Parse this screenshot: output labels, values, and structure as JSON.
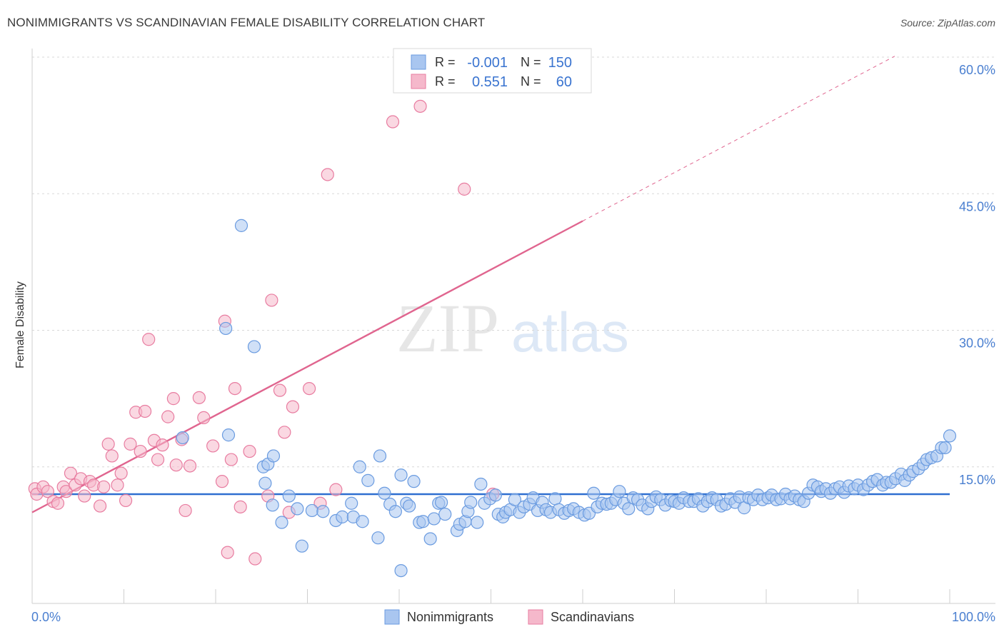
{
  "header": {
    "title": "NONIMMIGRANTS VS SCANDINAVIAN FEMALE DISABILITY CORRELATION CHART",
    "source": "Source: ZipAtlas.com"
  },
  "watermark": {
    "zip": "ZIP",
    "atlas": "atlas"
  },
  "colors": {
    "blue": "#6a9be0",
    "blue_fill": "#a9c6f0",
    "pink": "#e87ca0",
    "pink_fill": "#f5b8cb",
    "blue_line": "#2f6fd0",
    "pink_line": "#e0658f",
    "grid": "#d8d8d8"
  },
  "legend_top": {
    "rows": [
      {
        "r_label": "R =",
        "r_value": "-0.001",
        "n_label": "N =",
        "n_value": "150",
        "series": "blue"
      },
      {
        "r_label": "R =",
        "r_value": "0.551",
        "n_label": "N =",
        "n_value": "60",
        "series": "pink"
      }
    ]
  },
  "legend_bottom": {
    "items": [
      {
        "label": "Nonimmigrants",
        "series": "blue"
      },
      {
        "label": "Scandinavians",
        "series": "pink"
      }
    ]
  },
  "chart_data": {
    "type": "scatter",
    "title": "NONIMMIGRANTS VS SCANDINAVIAN FEMALE DISABILITY CORRELATION CHART",
    "xlabel": "",
    "ylabel": "Female Disability",
    "xlim": [
      0,
      100
    ],
    "ylim": [
      0,
      60
    ],
    "x_tick_labels": [
      "0.0%",
      "100.0%"
    ],
    "y_ticks": [
      15,
      30,
      45,
      60
    ],
    "y_tick_labels": [
      "15.0%",
      "30.0%",
      "45.0%",
      "60.0%"
    ],
    "trendlines": [
      {
        "series": "Nonimmigrants",
        "x": [
          0,
          100
        ],
        "y": [
          12.0,
          12.0
        ],
        "style": "solid"
      },
      {
        "series": "Scandinavians",
        "x": [
          0,
          60
        ],
        "y": [
          10.0,
          42.0
        ],
        "style": "solid"
      },
      {
        "series": "Scandinavians",
        "x": [
          60,
          94
        ],
        "y": [
          42.0,
          60.1
        ],
        "style": "dashed"
      }
    ],
    "series": [
      {
        "name": "Nonimmigrants",
        "points": [
          [
            16.4,
            18.2
          ],
          [
            21.1,
            30.2
          ],
          [
            22.8,
            41.5
          ],
          [
            24.2,
            28.2
          ],
          [
            21.4,
            18.5
          ],
          [
            25.2,
            15.0
          ],
          [
            25.7,
            15.3
          ],
          [
            26.3,
            16.2
          ],
          [
            25.4,
            13.2
          ],
          [
            26.2,
            10.8
          ],
          [
            28.0,
            11.8
          ],
          [
            27.2,
            8.9
          ],
          [
            29.4,
            6.3
          ],
          [
            28.9,
            10.4
          ],
          [
            30.5,
            10.2
          ],
          [
            31.7,
            10.1
          ],
          [
            33.1,
            9.1
          ],
          [
            33.8,
            9.5
          ],
          [
            34.8,
            11.0
          ],
          [
            35.0,
            9.5
          ],
          [
            36.0,
            9.0
          ],
          [
            35.7,
            15.0
          ],
          [
            36.6,
            13.5
          ],
          [
            37.7,
            7.2
          ],
          [
            37.9,
            16.2
          ],
          [
            38.4,
            12.1
          ],
          [
            39.0,
            10.9
          ],
          [
            39.6,
            10.1
          ],
          [
            40.2,
            14.1
          ],
          [
            40.2,
            3.6
          ],
          [
            40.8,
            11.0
          ],
          [
            41.1,
            10.7
          ],
          [
            41.6,
            13.4
          ],
          [
            42.2,
            8.9
          ],
          [
            42.6,
            9.0
          ],
          [
            43.4,
            7.1
          ],
          [
            43.8,
            9.3
          ],
          [
            44.3,
            11.0
          ],
          [
            44.6,
            11.1
          ],
          [
            45.0,
            9.8
          ],
          [
            46.3,
            8.0
          ],
          [
            46.6,
            8.7
          ],
          [
            47.2,
            9.0
          ],
          [
            47.5,
            10.1
          ],
          [
            47.8,
            11.1
          ],
          [
            48.5,
            8.9
          ],
          [
            48.9,
            13.1
          ],
          [
            49.3,
            11.0
          ],
          [
            49.9,
            11.5
          ],
          [
            50.5,
            11.9
          ],
          [
            50.8,
            9.8
          ],
          [
            51.3,
            9.5
          ],
          [
            51.6,
            10.0
          ],
          [
            52.1,
            10.3
          ],
          [
            52.6,
            11.4
          ],
          [
            53.1,
            10.0
          ],
          [
            53.6,
            10.6
          ],
          [
            54.2,
            10.9
          ],
          [
            54.6,
            11.6
          ],
          [
            55.1,
            10.2
          ],
          [
            55.6,
            11.1
          ],
          [
            56.0,
            10.3
          ],
          [
            56.5,
            10.0
          ],
          [
            57.0,
            11.5
          ],
          [
            57.4,
            10.3
          ],
          [
            58.0,
            9.9
          ],
          [
            58.5,
            10.2
          ],
          [
            59.0,
            10.4
          ],
          [
            59.6,
            10.0
          ],
          [
            60.2,
            9.7
          ],
          [
            60.7,
            9.9
          ],
          [
            61.2,
            12.1
          ],
          [
            61.6,
            10.6
          ],
          [
            62.1,
            11.0
          ],
          [
            62.6,
            10.9
          ],
          [
            63.1,
            11.0
          ],
          [
            63.6,
            11.4
          ],
          [
            64.0,
            12.3
          ],
          [
            64.5,
            11.0
          ],
          [
            65.0,
            10.4
          ],
          [
            65.5,
            11.6
          ],
          [
            66.0,
            11.4
          ],
          [
            66.5,
            10.8
          ],
          [
            67.1,
            10.4
          ],
          [
            67.5,
            11.2
          ],
          [
            68.0,
            11.7
          ],
          [
            68.5,
            11.4
          ],
          [
            69.0,
            10.8
          ],
          [
            69.6,
            11.3
          ],
          [
            70.0,
            11.2
          ],
          [
            70.5,
            11.0
          ],
          [
            71.0,
            11.6
          ],
          [
            71.6,
            11.2
          ],
          [
            72.1,
            11.2
          ],
          [
            72.6,
            11.5
          ],
          [
            73.1,
            10.7
          ],
          [
            73.6,
            11.2
          ],
          [
            74.1,
            11.6
          ],
          [
            74.6,
            11.4
          ],
          [
            75.1,
            10.7
          ],
          [
            75.6,
            10.9
          ],
          [
            76.1,
            11.5
          ],
          [
            76.6,
            11.1
          ],
          [
            77.1,
            11.7
          ],
          [
            77.6,
            10.5
          ],
          [
            78.1,
            11.6
          ],
          [
            78.6,
            11.4
          ],
          [
            79.1,
            11.9
          ],
          [
            79.6,
            11.4
          ],
          [
            80.2,
            11.6
          ],
          [
            80.6,
            11.9
          ],
          [
            81.1,
            11.4
          ],
          [
            81.6,
            11.5
          ],
          [
            82.1,
            12.0
          ],
          [
            82.6,
            11.5
          ],
          [
            83.1,
            11.8
          ],
          [
            83.6,
            11.4
          ],
          [
            84.1,
            11.2
          ],
          [
            84.6,
            12.1
          ],
          [
            85.1,
            13.0
          ],
          [
            85.6,
            12.8
          ],
          [
            86.0,
            12.3
          ],
          [
            86.5,
            12.6
          ],
          [
            87.0,
            12.1
          ],
          [
            87.5,
            12.6
          ],
          [
            88.0,
            12.8
          ],
          [
            88.5,
            12.2
          ],
          [
            89.0,
            12.9
          ],
          [
            89.6,
            12.6
          ],
          [
            90.0,
            13.0
          ],
          [
            90.6,
            12.5
          ],
          [
            91.1,
            13.0
          ],
          [
            91.6,
            13.4
          ],
          [
            92.1,
            13.6
          ],
          [
            92.7,
            13.0
          ],
          [
            93.1,
            13.3
          ],
          [
            93.6,
            13.3
          ],
          [
            94.1,
            13.7
          ],
          [
            94.7,
            14.2
          ],
          [
            95.1,
            13.5
          ],
          [
            95.6,
            14.1
          ],
          [
            96.0,
            14.5
          ],
          [
            96.6,
            14.8
          ],
          [
            97.1,
            15.3
          ],
          [
            97.5,
            15.8
          ],
          [
            98.0,
            16.0
          ],
          [
            98.6,
            16.2
          ],
          [
            99.1,
            17.1
          ],
          [
            99.5,
            17.1
          ],
          [
            100.0,
            18.4
          ]
        ]
      },
      {
        "name": "Scandinavians",
        "points": [
          [
            0.3,
            12.6
          ],
          [
            0.5,
            12.0
          ],
          [
            1.2,
            12.8
          ],
          [
            1.7,
            12.3
          ],
          [
            2.3,
            11.2
          ],
          [
            2.8,
            11.0
          ],
          [
            3.4,
            12.8
          ],
          [
            3.7,
            12.3
          ],
          [
            4.2,
            14.3
          ],
          [
            4.7,
            13.0
          ],
          [
            5.3,
            13.7
          ],
          [
            5.7,
            11.8
          ],
          [
            6.3,
            13.4
          ],
          [
            6.7,
            13.0
          ],
          [
            7.4,
            10.7
          ],
          [
            7.8,
            12.8
          ],
          [
            8.3,
            17.5
          ],
          [
            8.7,
            16.2
          ],
          [
            9.3,
            13.0
          ],
          [
            9.7,
            14.3
          ],
          [
            10.2,
            11.3
          ],
          [
            10.7,
            17.5
          ],
          [
            11.3,
            21.0
          ],
          [
            11.8,
            16.7
          ],
          [
            12.3,
            21.1
          ],
          [
            12.7,
            29.0
          ],
          [
            13.3,
            17.9
          ],
          [
            13.7,
            15.8
          ],
          [
            14.2,
            17.4
          ],
          [
            14.8,
            20.5
          ],
          [
            15.4,
            22.5
          ],
          [
            15.7,
            15.2
          ],
          [
            16.3,
            18.0
          ],
          [
            16.7,
            10.2
          ],
          [
            17.2,
            15.1
          ],
          [
            18.2,
            22.6
          ],
          [
            18.7,
            20.4
          ],
          [
            19.7,
            17.3
          ],
          [
            20.7,
            13.4
          ],
          [
            21.0,
            31.0
          ],
          [
            21.3,
            5.6
          ],
          [
            21.7,
            15.8
          ],
          [
            22.1,
            23.6
          ],
          [
            22.7,
            10.6
          ],
          [
            23.7,
            16.7
          ],
          [
            24.3,
            4.9
          ],
          [
            25.7,
            11.8
          ],
          [
            26.1,
            33.3
          ],
          [
            27.0,
            23.4
          ],
          [
            27.5,
            18.8
          ],
          [
            28.0,
            10.0
          ],
          [
            28.4,
            21.6
          ],
          [
            30.2,
            23.6
          ],
          [
            31.4,
            11.0
          ],
          [
            32.2,
            47.1
          ],
          [
            33.1,
            12.5
          ],
          [
            39.3,
            52.9
          ],
          [
            42.3,
            54.6
          ],
          [
            47.1,
            45.5
          ],
          [
            50.2,
            12.0
          ]
        ]
      }
    ]
  }
}
